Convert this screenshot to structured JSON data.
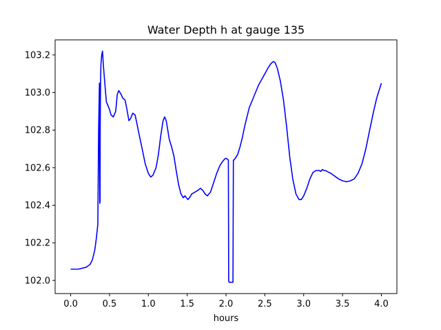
{
  "chart_data": {
    "type": "line",
    "title": "Water Depth h at gauge 135",
    "xlabel": "hours",
    "ylabel": "",
    "xlim": [
      -0.2,
      4.2
    ],
    "ylim": [
      101.93,
      103.28
    ],
    "xticks": [
      0.0,
      0.5,
      1.0,
      1.5,
      2.0,
      2.5,
      3.0,
      3.5,
      4.0
    ],
    "xtick_labels": [
      "0.0",
      "0.5",
      "1.0",
      "1.5",
      "2.0",
      "2.5",
      "3.0",
      "3.5",
      "4.0"
    ],
    "yticks": [
      102.0,
      102.2,
      102.4,
      102.6,
      102.8,
      103.0,
      103.2
    ],
    "ytick_labels": [
      "102.0",
      "102.2",
      "102.4",
      "102.6",
      "102.8",
      "103.0",
      "103.2"
    ],
    "grid": false,
    "line_color": "#0000ff",
    "series": [
      {
        "name": "",
        "x": [
          0.0,
          0.1,
          0.2,
          0.25,
          0.28,
          0.31,
          0.33,
          0.35,
          0.36,
          0.37,
          0.372,
          0.375,
          0.378,
          0.38,
          0.385,
          0.39,
          0.4,
          0.41,
          0.42,
          0.44,
          0.46,
          0.48,
          0.5,
          0.52,
          0.55,
          0.58,
          0.6,
          0.62,
          0.65,
          0.67,
          0.7,
          0.72,
          0.75,
          0.77,
          0.8,
          0.83,
          0.85,
          0.88,
          0.92,
          0.96,
          1.0,
          1.03,
          1.06,
          1.1,
          1.13,
          1.16,
          1.19,
          1.21,
          1.23,
          1.25,
          1.27,
          1.3,
          1.33,
          1.36,
          1.39,
          1.42,
          1.45,
          1.47,
          1.49,
          1.51,
          1.53,
          1.56,
          1.6,
          1.64,
          1.67,
          1.7,
          1.73,
          1.76,
          1.8,
          1.84,
          1.88,
          1.92,
          1.95,
          1.98,
          2.0,
          2.02,
          2.03,
          2.035,
          2.04,
          2.06,
          2.08,
          2.09,
          2.095,
          2.1,
          2.12,
          2.15,
          2.18,
          2.21,
          2.24,
          2.27,
          2.3,
          2.34,
          2.38,
          2.42,
          2.46,
          2.5,
          2.54,
          2.58,
          2.61,
          2.63,
          2.66,
          2.7,
          2.74,
          2.78,
          2.82,
          2.86,
          2.9,
          2.94,
          2.97,
          3.0,
          3.04,
          3.08,
          3.12,
          3.16,
          3.2,
          3.22,
          3.24,
          3.26,
          3.28,
          3.3,
          3.35,
          3.4,
          3.45,
          3.5,
          3.55,
          3.6,
          3.65,
          3.7,
          3.75,
          3.8,
          3.85,
          3.9,
          3.94,
          3.97,
          4.0
        ],
        "y": [
          102.06,
          102.06,
          102.07,
          102.085,
          102.11,
          102.16,
          102.22,
          102.3,
          102.8,
          103.05,
          102.6,
          102.41,
          102.42,
          102.8,
          103.05,
          103.15,
          103.2,
          103.22,
          103.15,
          103.05,
          102.95,
          102.93,
          102.91,
          102.88,
          102.87,
          102.9,
          102.99,
          103.01,
          102.99,
          102.97,
          102.96,
          102.92,
          102.85,
          102.86,
          102.89,
          102.88,
          102.84,
          102.78,
          102.7,
          102.62,
          102.57,
          102.55,
          102.56,
          102.6,
          102.67,
          102.77,
          102.85,
          102.87,
          102.85,
          102.8,
          102.75,
          102.71,
          102.66,
          102.58,
          102.51,
          102.46,
          102.44,
          102.45,
          102.44,
          102.43,
          102.44,
          102.46,
          102.47,
          102.48,
          102.49,
          102.48,
          102.46,
          102.45,
          102.47,
          102.52,
          102.57,
          102.61,
          102.63,
          102.645,
          102.65,
          102.645,
          102.64,
          101.995,
          101.99,
          101.99,
          101.99,
          101.99,
          102.64,
          102.64,
          102.65,
          102.67,
          102.71,
          102.76,
          102.82,
          102.87,
          102.92,
          102.96,
          103.0,
          103.04,
          103.07,
          103.1,
          103.13,
          103.155,
          103.165,
          103.16,
          103.13,
          103.06,
          102.96,
          102.82,
          102.66,
          102.54,
          102.46,
          102.43,
          102.43,
          102.45,
          102.49,
          102.54,
          102.575,
          102.585,
          102.585,
          102.58,
          102.59,
          102.585,
          102.585,
          102.58,
          102.57,
          102.555,
          102.54,
          102.53,
          102.525,
          102.53,
          102.54,
          102.57,
          102.62,
          102.7,
          102.8,
          102.9,
          102.97,
          103.01,
          103.05
        ]
      }
    ]
  }
}
